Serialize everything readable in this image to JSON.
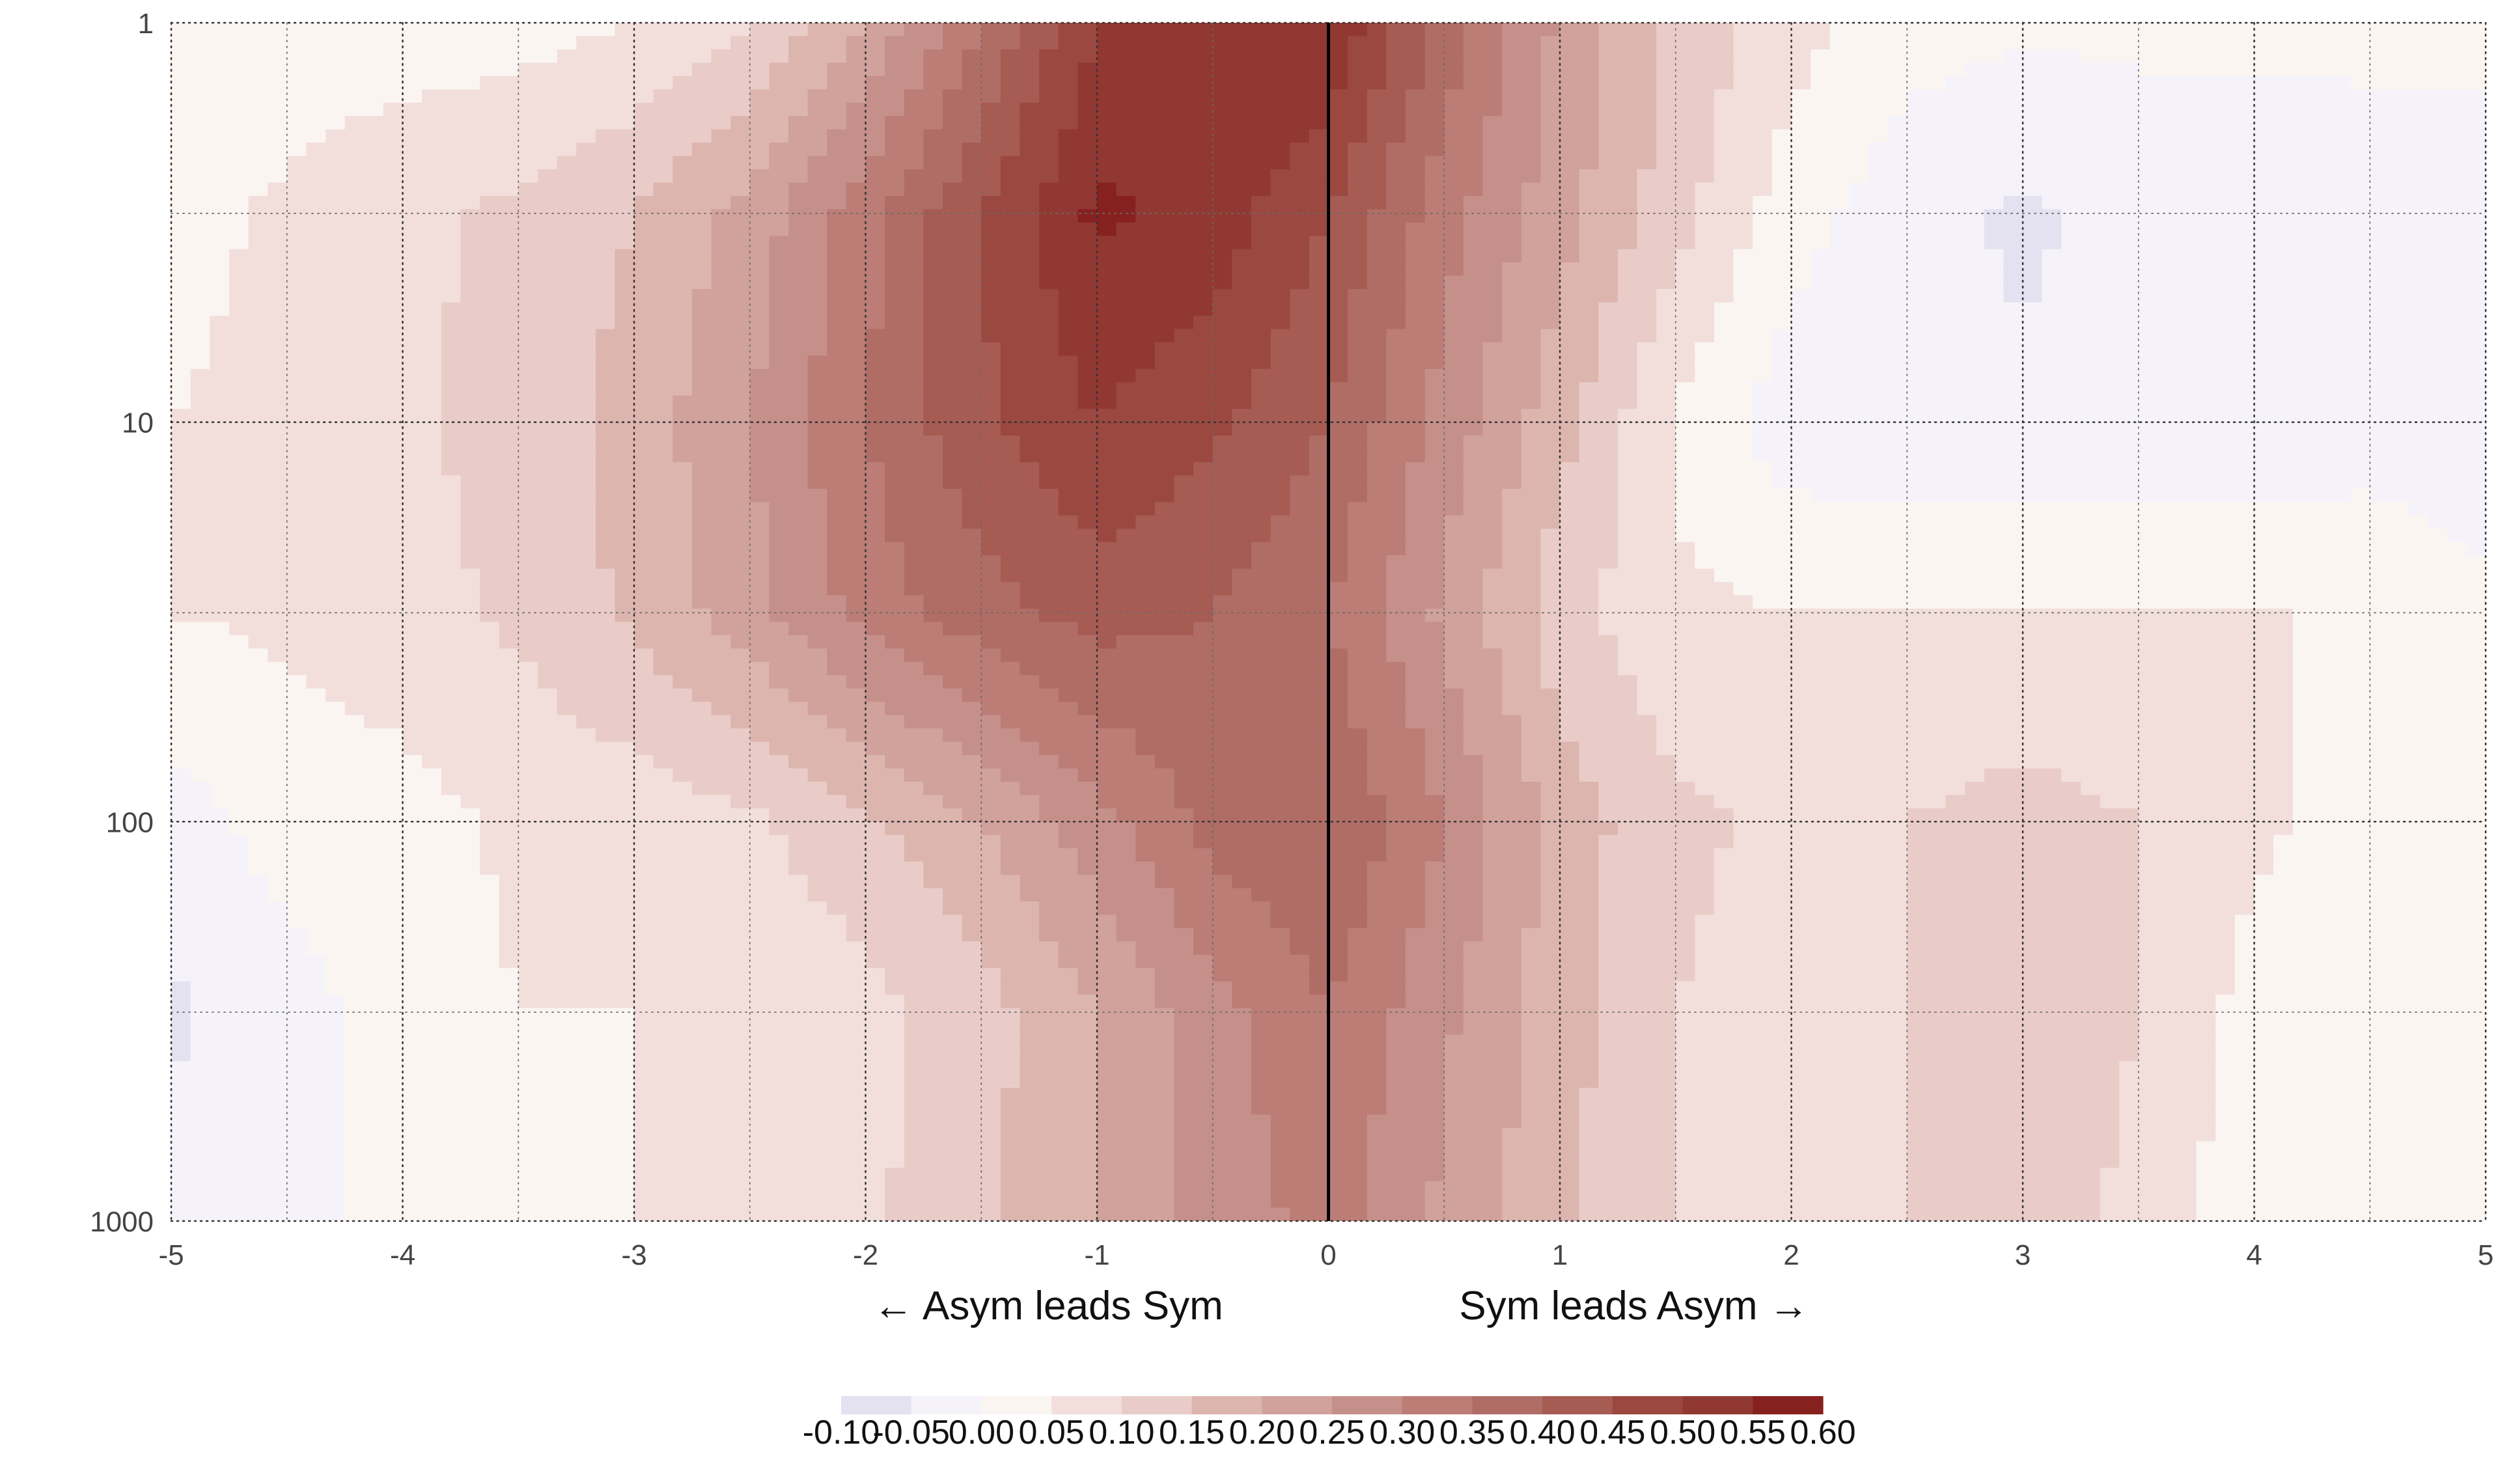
{
  "chart_data": {
    "type": "heatmap",
    "subtype": "filled-contour",
    "title": "",
    "xlabel": "",
    "ylabel": "",
    "x_scale": "linear",
    "y_scale": "log",
    "y_inverted": true,
    "xlim": [
      -5,
      5
    ],
    "ylim": [
      1,
      1000
    ],
    "grid": true,
    "x_ticks": [
      -5,
      -4,
      -3,
      -2,
      -1,
      0,
      1,
      2,
      3,
      4,
      5
    ],
    "x_tick_labels": [
      "-5",
      "-4",
      "-3",
      "-2",
      "-1",
      "0",
      "1",
      "2",
      "3",
      "4",
      "5"
    ],
    "y_ticks": [
      1,
      10,
      100,
      1000
    ],
    "y_tick_labels": [
      "1",
      "10",
      "100",
      "1000"
    ],
    "annotations": {
      "left": "← Asym leads Sym",
      "right": "Sym leads Asym →"
    },
    "reference_line_x": 0,
    "colorbar": {
      "orientation": "horizontal",
      "levels": [
        -0.1,
        -0.05,
        0.0,
        0.05,
        0.1,
        0.15,
        0.2,
        0.25,
        0.3,
        0.35,
        0.4,
        0.45,
        0.5,
        0.55,
        0.6
      ],
      "tick_labels": [
        "-0.10",
        "-0.05",
        "0.00",
        "0.05",
        "0.10",
        "0.15",
        "0.20",
        "0.25",
        "0.30",
        "0.35",
        "0.40",
        "0.45",
        "0.50",
        "0.55",
        "0.60"
      ],
      "colors": [
        "#e4e1f1",
        "#f5f3f9",
        "#fbf5f2",
        "#f2dfdc",
        "#e9ccc8",
        "#ddb5af",
        "#d1a19b",
        "#c6908a",
        "#bb7d76",
        "#b06d66",
        "#a65b53",
        "#9b4841",
        "#913832",
        "#87211f"
      ]
    },
    "x": [
      -5,
      -4.5,
      -4,
      -3.5,
      -3,
      -2.5,
      -2,
      -1.5,
      -1,
      -0.5,
      0,
      0.5,
      1,
      1.5,
      2,
      2.5,
      3,
      3.5,
      4,
      4.5,
      5
    ],
    "y": [
      1,
      3,
      10,
      30,
      100,
      300,
      1000
    ],
    "z": [
      [
        0.01,
        0.02,
        0.02,
        0.03,
        0.05,
        0.1,
        0.2,
        0.35,
        0.5,
        0.55,
        0.55,
        0.38,
        0.24,
        0.14,
        0.07,
        0.02,
        0.01,
        0.01,
        0.01,
        0.01,
        0.01
      ],
      [
        0.03,
        0.06,
        0.09,
        0.11,
        0.15,
        0.22,
        0.33,
        0.45,
        0.56,
        0.53,
        0.45,
        0.32,
        0.22,
        0.12,
        0.02,
        -0.03,
        -0.06,
        -0.03,
        -0.03,
        -0.02,
        -0.02
      ],
      [
        0.05,
        0.07,
        0.09,
        0.12,
        0.17,
        0.25,
        0.35,
        0.44,
        0.5,
        0.46,
        0.4,
        0.28,
        0.17,
        0.04,
        -0.03,
        -0.04,
        -0.04,
        -0.04,
        -0.04,
        -0.03,
        -0.03
      ],
      [
        0.05,
        0.06,
        0.08,
        0.11,
        0.16,
        0.23,
        0.32,
        0.38,
        0.42,
        0.4,
        0.35,
        0.24,
        0.12,
        0.06,
        0.05,
        0.05,
        0.05,
        0.05,
        0.05,
        0.05,
        0.01
      ],
      [
        -0.02,
        0.02,
        0.03,
        0.06,
        0.07,
        0.09,
        0.14,
        0.2,
        0.28,
        0.37,
        0.4,
        0.3,
        0.18,
        0.11,
        0.09,
        0.1,
        0.12,
        0.1,
        0.06,
        0.03,
        0.01
      ],
      [
        -0.06,
        -0.02,
        0.02,
        0.05,
        0.05,
        0.06,
        0.08,
        0.13,
        0.2,
        0.28,
        0.35,
        0.26,
        0.17,
        0.1,
        0.08,
        0.1,
        0.15,
        0.1,
        0.03,
        0.01,
        0.01
      ],
      [
        -0.03,
        -0.01,
        0.01,
        0.03,
        0.05,
        0.06,
        0.09,
        0.14,
        0.2,
        0.27,
        0.32,
        0.24,
        0.16,
        0.1,
        0.06,
        0.1,
        0.14,
        0.08,
        0.02,
        0.01,
        0.01
      ]
    ]
  }
}
